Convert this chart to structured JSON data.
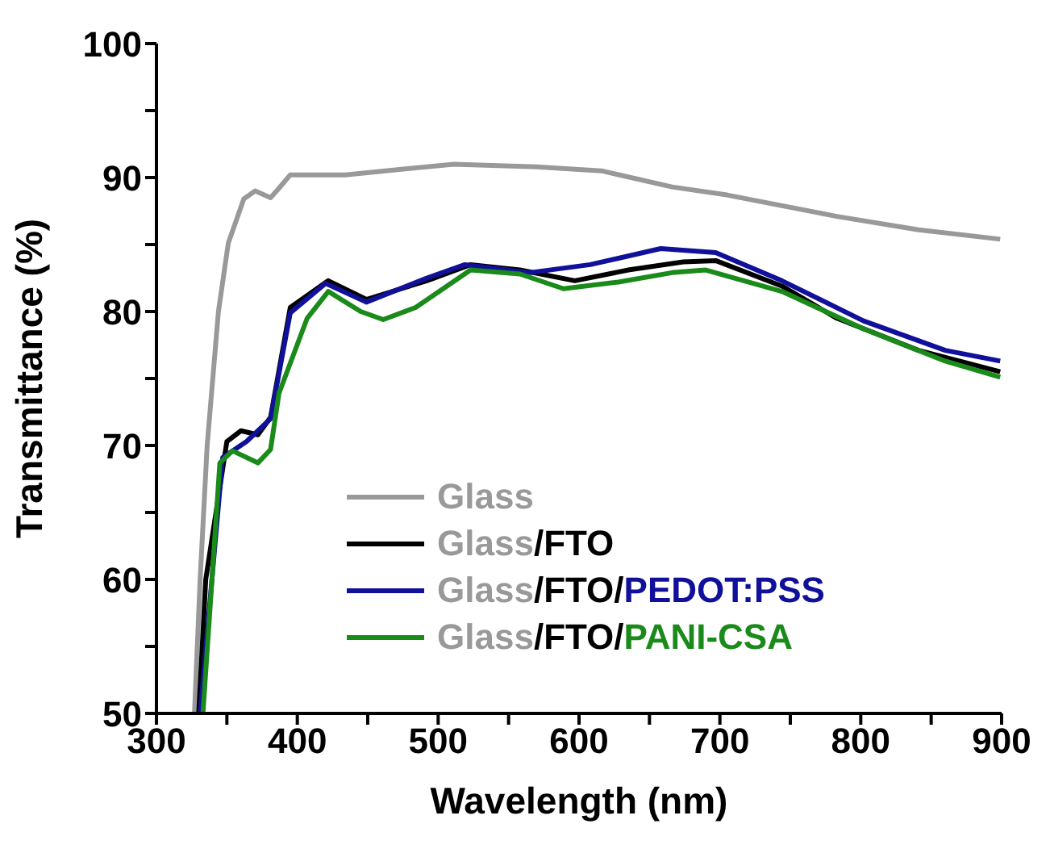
{
  "chart_data": {
    "type": "line",
    "xlabel": "Wavelength (nm)",
    "ylabel": "Transmittance (%)",
    "xlim": [
      300,
      900
    ],
    "ylim": [
      50,
      100
    ],
    "xticks": [
      300,
      {
        "value": 350,
        "label": null
      },
      400,
      {
        "value": 450,
        "label": null
      },
      500,
      {
        "value": 550,
        "label": null
      },
      600,
      {
        "value": 650,
        "label": null
      },
      700,
      {
        "value": 750,
        "label": null
      },
      800,
      {
        "value": 850,
        "label": null
      },
      900
    ],
    "yticks": [
      50,
      {
        "value": 55,
        "label": null
      },
      60,
      {
        "value": 65,
        "label": null
      },
      70,
      {
        "value": 75,
        "label": null
      },
      80,
      {
        "value": 85,
        "label": null
      },
      90,
      {
        "value": 95,
        "label": null
      },
      100
    ],
    "grid": false,
    "legend": "bottom",
    "marker": "none",
    "line_style": "solid",
    "series": [
      {
        "name": "Glass",
        "color": "#999999",
        "x": [
          327,
          331,
          336,
          344,
          351,
          362,
          370,
          381,
          387,
          395,
          434,
          511,
          570,
          616,
          666,
          705,
          783,
          841,
          899
        ],
        "values": [
          50,
          60,
          70,
          80,
          85.1,
          88.4,
          89.0,
          88.5,
          89.2,
          90.2,
          90.2,
          91.0,
          90.8,
          90.5,
          89.3,
          88.7,
          87.1,
          86.1,
          85.4
        ]
      },
      {
        "name": "Glass/FTO",
        "color": "#000000",
        "x": [
          330,
          335,
          350,
          360,
          372,
          381,
          395,
          422,
          449,
          492,
          523,
          558,
          597,
          635,
          674,
          697,
          744,
          783,
          841,
          899
        ],
        "values": [
          50,
          60,
          70.3,
          71.1,
          70.8,
          72.1,
          80.3,
          82.3,
          80.9,
          82.3,
          83.5,
          83.1,
          82.3,
          83.1,
          83.7,
          83.8,
          81.9,
          79.5,
          77.1,
          75.5
        ]
      },
      {
        "name": "Glass/FTO/PEDOT:PSS",
        "color": "#10109a",
        "x": [
          331,
          347,
          364,
          381,
          395,
          420,
          449,
          492,
          519,
          565,
          608,
          658,
          697,
          744,
          802,
          860,
          899
        ],
        "values": [
          50,
          69.1,
          70.3,
          72.0,
          79.9,
          82.1,
          80.7,
          82.5,
          83.5,
          82.9,
          83.5,
          84.7,
          84.4,
          82.3,
          79.3,
          77.1,
          76.3
        ]
      },
      {
        "name": "Glass/FTO/PANI-CSA",
        "color": "#1a8a1a",
        "x": [
          333,
          345,
          354,
          372,
          381,
          387,
          407,
          422,
          445,
          461,
          484,
          523,
          558,
          589,
          628,
          666,
          690,
          744,
          802,
          860,
          899
        ],
        "values": [
          50,
          68.7,
          69.6,
          68.7,
          69.7,
          73.9,
          79.5,
          81.5,
          80.0,
          79.4,
          80.3,
          83.1,
          82.8,
          81.7,
          82.2,
          82.9,
          83.1,
          81.5,
          78.7,
          76.3,
          75.1
        ]
      }
    ]
  }
}
